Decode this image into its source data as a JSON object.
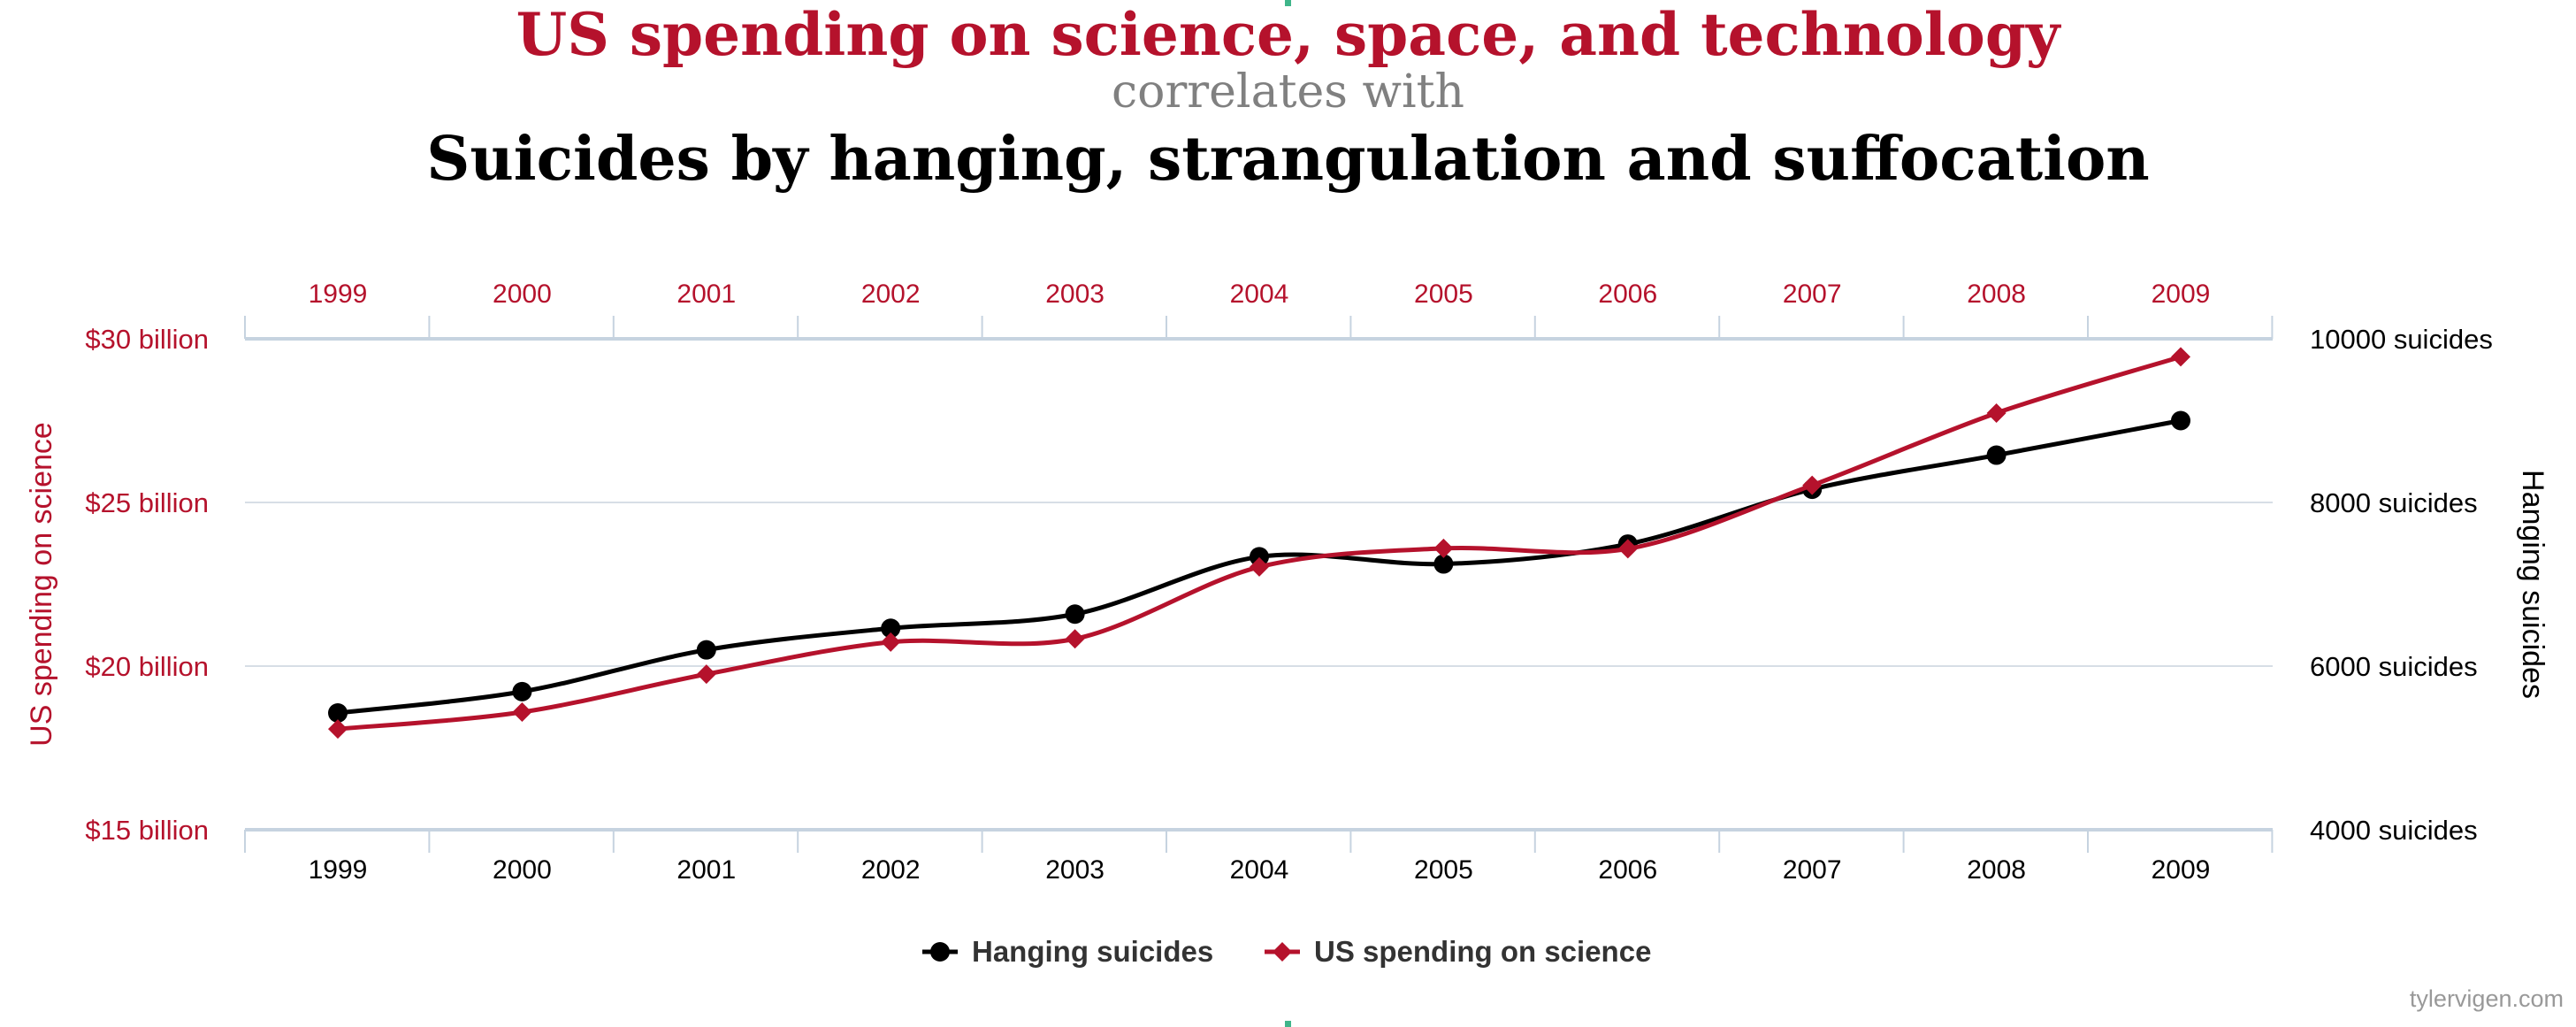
{
  "titles": {
    "line1": "US spending on science, space, and technology",
    "line2": "correlates with",
    "line3": "Suicides by hanging, strangulation and suffocation"
  },
  "watermark": "tylervigen.com",
  "colors": {
    "red": "#b5122c",
    "black": "#000000",
    "grid": "#d7dee6",
    "axis": "#c6d3e0",
    "accent": "#3fb58a",
    "muted": "#808080"
  },
  "chart_data": {
    "type": "line",
    "x": [
      "1999",
      "2000",
      "2001",
      "2002",
      "2003",
      "2004",
      "2005",
      "2006",
      "2007",
      "2008",
      "2009"
    ],
    "series": [
      {
        "name": "Hanging suicides",
        "axis": "right",
        "color": "#000000",
        "marker": "circle",
        "values": [
          5427,
          5688,
          6198,
          6462,
          6635,
          7336,
          7248,
          7491,
          8161,
          8578,
          9000
        ]
      },
      {
        "name": "US spending on science",
        "axis": "left",
        "color": "#b5122c",
        "marker": "diamond",
        "values": [
          18079,
          18594,
          19753,
          20734,
          20831,
          23029,
          23597,
          23584,
          25525,
          27731,
          29449
        ]
      }
    ],
    "left_axis": {
      "label": "US spending on science",
      "ticks": [
        15000,
        20000,
        25000,
        30000
      ],
      "tick_labels": [
        "$15 billion",
        "$20 billion",
        "$25 billion",
        "$30 billion"
      ],
      "range": [
        15000,
        30000
      ]
    },
    "right_axis": {
      "label": "Hanging suicides",
      "ticks": [
        4000,
        6000,
        8000,
        10000
      ],
      "tick_labels": [
        "4000 suicides",
        "6000 suicides",
        "8000 suicides",
        "10000 suicides"
      ],
      "range": [
        4000,
        10000
      ]
    },
    "grid": true,
    "legend_placement": "bottom-center"
  }
}
